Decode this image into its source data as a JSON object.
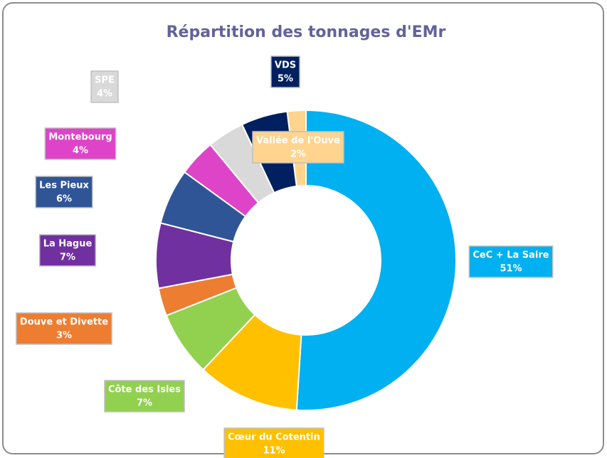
{
  "chart_data": {
    "type": "donut",
    "title": "Répartition des tonnages d'EMr",
    "categories": [
      "CeC + La Saire",
      "Cœur du Cotentin",
      "Côte des Isles",
      "Douve et Divette",
      "La Hague",
      "Les Pieux",
      "Montebourg",
      "SPE",
      "VDS",
      "Vallée de l'Ouve"
    ],
    "values": [
      51,
      11,
      7,
      3,
      7,
      6,
      4,
      4,
      5,
      2
    ],
    "value_labels": [
      "51%",
      "11%",
      "7%",
      "3%",
      "7%",
      "6%",
      "4%",
      "4%",
      "5%",
      "2%"
    ],
    "colors": [
      "#00b0f0",
      "#ffc000",
      "#92d050",
      "#ed7d31",
      "#7030a0",
      "#2f5597",
      "#dd44c8",
      "#d9d9d9",
      "#002060",
      "#ffd48f"
    ]
  }
}
